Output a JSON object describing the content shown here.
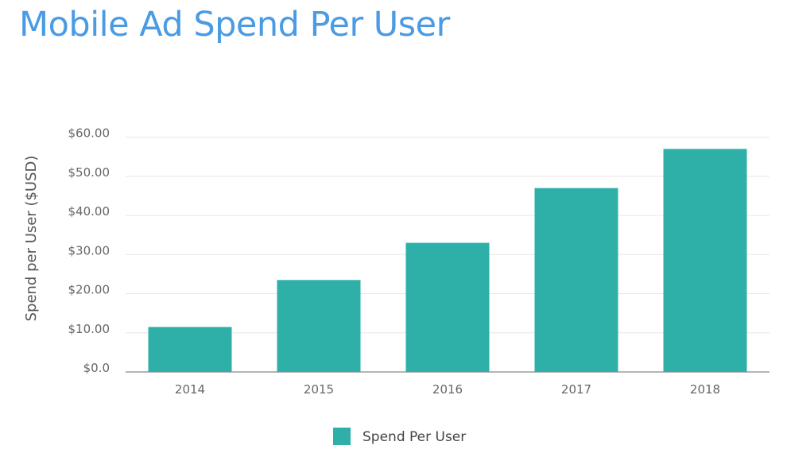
{
  "chart_data": {
    "type": "bar",
    "title": "Mobile Ad Spend Per User",
    "xlabel": "",
    "ylabel": "Spend per User ($USD)",
    "categories": [
      "2014",
      "2015",
      "2016",
      "2017",
      "2018"
    ],
    "series": [
      {
        "name": "Spend Per User",
        "values": [
          11.5,
          23.5,
          33.0,
          47.0,
          57.0
        ],
        "color": "#2eb0a8"
      }
    ],
    "ylim": [
      0,
      65
    ],
    "y_ticks": [
      0,
      10,
      20,
      30,
      40,
      50,
      60
    ],
    "y_tick_labels": [
      "$0.0",
      "$10.00",
      "$20.00",
      "$30.00",
      "$40.00",
      "$50.00",
      "$60.00"
    ],
    "grid": true,
    "legend_position": "bottom"
  }
}
